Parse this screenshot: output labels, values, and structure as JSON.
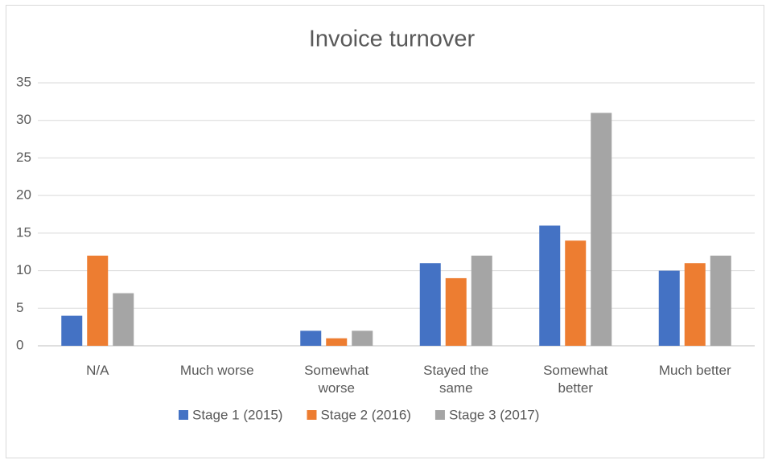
{
  "chart_data": {
    "type": "bar",
    "title": "Invoice turnover",
    "categories": [
      "N/A",
      "Much worse",
      "Somewhat worse",
      "Stayed the same",
      "Somewhat better",
      "Much better"
    ],
    "series": [
      {
        "name": "Stage 1 (2015)",
        "color": "#4472c4",
        "values": [
          4,
          0,
          2,
          11,
          16,
          10
        ]
      },
      {
        "name": "Stage 2 (2016)",
        "color": "#ed7d31",
        "values": [
          12,
          0,
          1,
          9,
          14,
          11
        ]
      },
      {
        "name": "Stage 3 (2017)",
        "color": "#a5a5a5",
        "values": [
          7,
          0,
          2,
          12,
          31,
          12
        ]
      }
    ],
    "ylim": [
      0,
      35
    ],
    "yticks": [
      0,
      5,
      10,
      15,
      20,
      25,
      30,
      35
    ],
    "grid": true,
    "legend": "bottom"
  }
}
